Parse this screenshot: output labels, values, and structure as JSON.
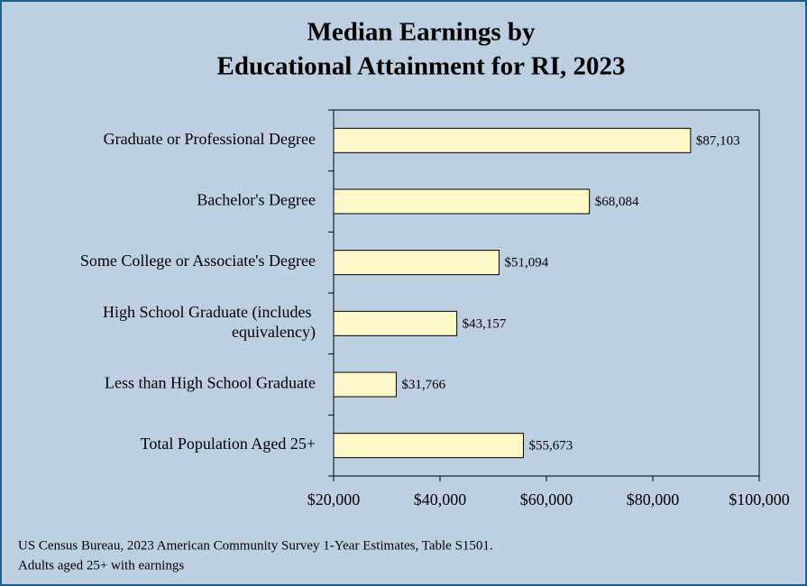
{
  "chart_data": {
    "type": "bar",
    "orientation": "horizontal",
    "title": [
      "Median Earnings by",
      "Educational Attainment for RI, 2023"
    ],
    "categories": [
      "Graduate or Professional Degree",
      "Bachelor's Degree",
      "Some College or Associate's Degree",
      "High School Graduate (includes equivalency)",
      "Less than High School Graduate",
      "Total Population Aged 25+"
    ],
    "values": [
      87103,
      68084,
      51094,
      43157,
      31766,
      55673
    ],
    "value_labels": [
      "$87,103",
      "$68,084",
      "$51,094",
      "$43,157",
      "$31,766",
      "$55,673"
    ],
    "color": "#fdf8c8",
    "xlim": [
      20000,
      100000
    ],
    "xticks": [
      {
        "value": 20000,
        "label": "$20,000"
      },
      {
        "value": 40000,
        "label": "$40,000"
      },
      {
        "value": 60000,
        "label": "$60,000"
      },
      {
        "value": 80000,
        "label": "$80,000"
      },
      {
        "value": 100000,
        "label": "$100,000"
      }
    ],
    "grid": false,
    "notes": [
      "US Census Bureau, 2023 American Community Survey 1-Year Estimates, Table S1501.",
      "Adults aged 25+ with earnings"
    ]
  }
}
